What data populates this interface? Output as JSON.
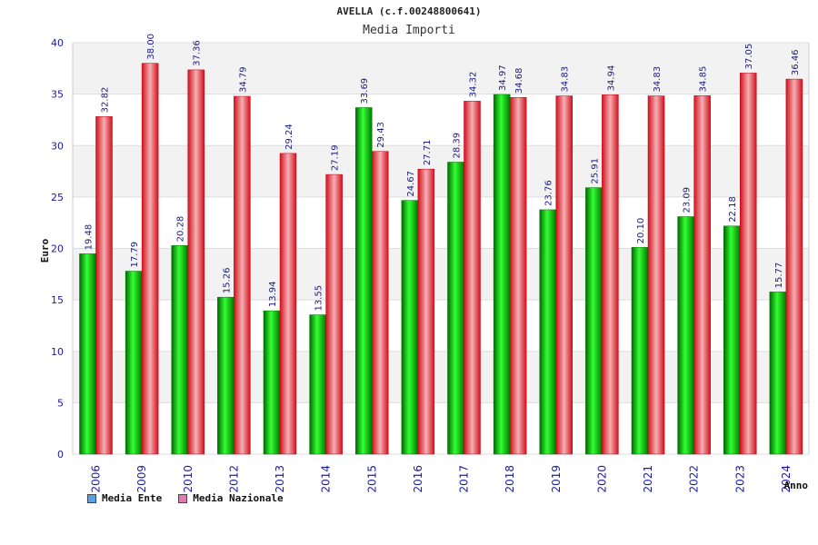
{
  "chart_data": {
    "type": "bar",
    "title": "AVELLA (c.f.00248800641)",
    "subtitle": "Media Importi",
    "ylabel": "Euro",
    "xlabel": "Anno",
    "ylim": [
      0,
      40
    ],
    "yticks": [
      0,
      5,
      10,
      15,
      20,
      25,
      30,
      35,
      40
    ],
    "grid": true,
    "legend_position": "bottom-left",
    "categories": [
      "2006",
      "2009",
      "2010",
      "2012",
      "2013",
      "2014",
      "2015",
      "2016",
      "2017",
      "2018",
      "2019",
      "2020",
      "2021",
      "2022",
      "2023",
      "2024"
    ],
    "series": [
      {
        "name": "Media Ente",
        "color": "#00aa00",
        "legend_color": "#5aa0e6",
        "values": [
          19.48,
          17.79,
          20.28,
          15.26,
          13.94,
          13.55,
          33.69,
          24.67,
          28.39,
          34.97,
          23.76,
          25.91,
          20.1,
          23.09,
          22.18,
          15.77
        ],
        "labels": [
          "19.48",
          "17.79",
          "20.28",
          "15.26",
          "13.94",
          "13.55",
          "33.69",
          "24.67",
          "28.39",
          "34.97",
          "23.76",
          "25.91",
          "20.10",
          "23.09",
          "22.18",
          "15.77"
        ]
      },
      {
        "name": "Media Nazionale",
        "color": "#e8202a",
        "legend_color": "#e07ab0",
        "values": [
          32.82,
          38.0,
          37.36,
          34.79,
          29.24,
          27.19,
          29.43,
          27.71,
          34.32,
          34.68,
          34.83,
          34.94,
          34.83,
          34.85,
          37.05,
          36.46
        ],
        "labels": [
          "32.82",
          "38.00",
          "37.36",
          "34.79",
          "29.24",
          "27.19",
          "29.43",
          "27.71",
          "34.32",
          "34.68",
          "34.83",
          "34.94",
          "34.83",
          "34.85",
          "37.05",
          "36.46"
        ]
      }
    ]
  }
}
